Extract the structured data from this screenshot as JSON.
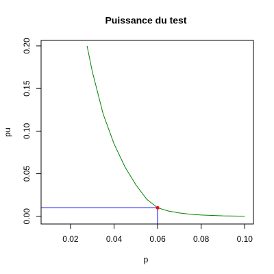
{
  "chart_data": {
    "type": "line",
    "title": "Puissance du test",
    "x_label": "p",
    "y_label": "pu",
    "series": [
      {
        "color": "#008000",
        "x": [
          0.0276,
          0.03,
          0.035,
          0.04,
          0.045,
          0.05,
          0.055,
          0.06,
          0.065,
          0.07,
          0.075,
          0.08,
          0.09,
          0.1
        ],
        "values": [
          0.2,
          0.17,
          0.12,
          0.085,
          0.058,
          0.037,
          0.02,
          0.01,
          0.0062,
          0.004,
          0.0025,
          0.0015,
          0.0005,
          0.0001
        ]
      }
    ],
    "point": {
      "x": 0.06,
      "y": 0.01,
      "color": "#ff0000"
    },
    "guide_color": "#0000ff",
    "xlim": [
      0.0065,
      0.104
    ],
    "ylim": [
      -0.009,
      0.2064
    ],
    "xticks": [
      0.02,
      0.04,
      0.06,
      0.08,
      {
        "value": 0.1,
        "label": "0.10"
      }
    ],
    "yticks": [
      {
        "value": 0,
        "label": "0.00"
      },
      0.05,
      {
        "value": 0.1,
        "label": "0.10"
      },
      0.15,
      {
        "value": 0.2,
        "label": "0.20"
      }
    ]
  }
}
